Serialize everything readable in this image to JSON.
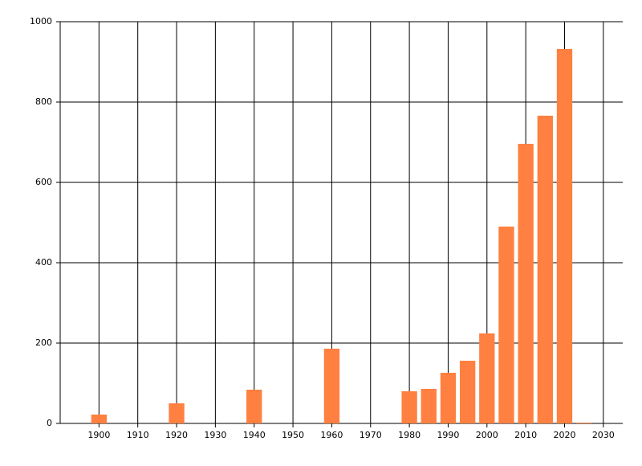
{
  "chart_data": {
    "type": "bar",
    "x": [
      1900,
      1920,
      1940,
      1960,
      1980,
      1985,
      1990,
      1995,
      2000,
      2005,
      2010,
      2015,
      2020,
      2025
    ],
    "values": [
      22,
      50,
      84,
      186,
      80,
      86,
      126,
      156,
      224,
      490,
      696,
      766,
      932,
      2
    ],
    "color": "#ff8040",
    "xlim": [
      1890,
      2035
    ],
    "xticks": [
      1900,
      1910,
      1920,
      1930,
      1940,
      1950,
      1960,
      1970,
      1980,
      1990,
      2000,
      2010,
      2020,
      2030
    ],
    "ylim": [
      0,
      1000
    ],
    "yticks": [
      0,
      200,
      400,
      600,
      800,
      1000
    ],
    "grid": true
  }
}
